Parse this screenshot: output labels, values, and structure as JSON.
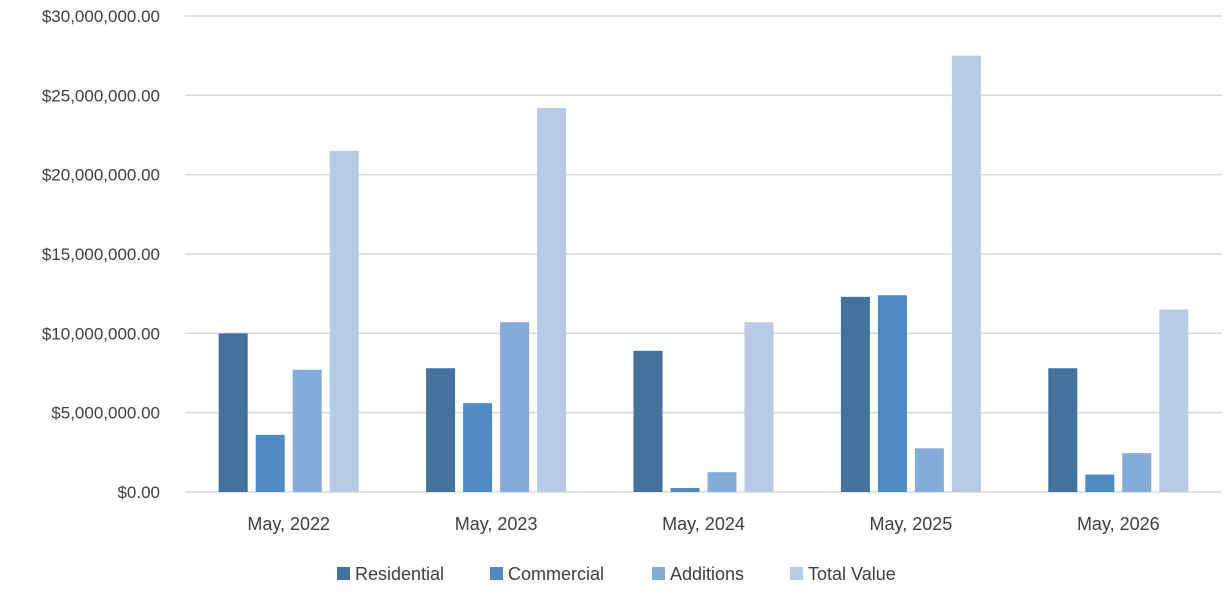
{
  "chart_data": {
    "type": "bar",
    "title": "",
    "xlabel": "",
    "ylabel": "",
    "categories": [
      "May, 2022",
      "May, 2023",
      "May, 2024",
      "May, 2025",
      "May, 2026"
    ],
    "series": [
      {
        "name": "Residential",
        "color": "#44729f",
        "values": [
          10000000,
          7800000,
          8900000,
          12300000,
          7800000
        ]
      },
      {
        "name": "Commercial",
        "color": "#4e8bc6",
        "values": [
          3600000,
          5600000,
          250000,
          12400000,
          1100000
        ]
      },
      {
        "name": "Additions",
        "color": "#84acd9",
        "values": [
          7700000,
          10700000,
          1250000,
          2750000,
          2450000
        ]
      },
      {
        "name": "Total Value",
        "color": "#b7cbe6",
        "values": [
          21500000,
          24200000,
          10700000,
          27500000,
          11500000
        ]
      }
    ],
    "ylim": [
      0,
      30000000
    ],
    "yticks": [
      0,
      5000000,
      10000000,
      15000000,
      20000000,
      25000000,
      30000000
    ],
    "ytick_labels": [
      "$0.00",
      "$5,000,000.00",
      "$10,000,000.00",
      "$15,000,000.00",
      "$20,000,000.00",
      "$25,000,000.00",
      "$30,000,000.00"
    ],
    "grid": true,
    "legend_position": "bottom"
  }
}
